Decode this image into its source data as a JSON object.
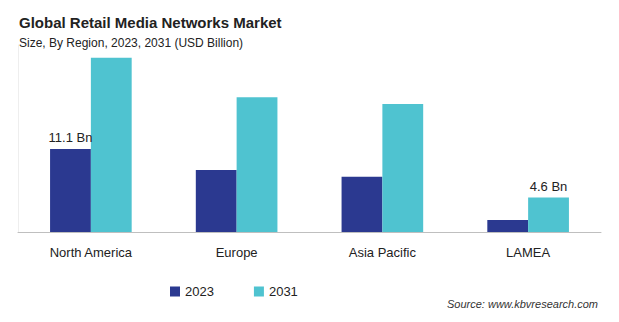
{
  "chart_data": {
    "type": "bar",
    "title": "Global Retail Media Networks Market",
    "subtitle": "Size, By Region, 2023, 2031 (USD Billion)",
    "source": "Source: www.kbvresearch.com",
    "categories": [
      "North America",
      "Europe",
      "Asia Pacific",
      "LAMEA"
    ],
    "series": [
      {
        "name": "2023",
        "color": "#2b3990",
        "values": [
          11.1,
          8.3,
          7.4,
          1.6
        ],
        "value_labels": [
          "11.1 Bn",
          null,
          null,
          null
        ]
      },
      {
        "name": "2031",
        "color": "#4fc3d0",
        "values": [
          23.3,
          18.0,
          17.1,
          4.6
        ],
        "value_labels": [
          null,
          null,
          null,
          "4.6 Bn"
        ]
      }
    ],
    "ylim": [
      0,
      25
    ],
    "grid": false,
    "legend": "bottom",
    "data_labels": true,
    "tick_labels": "x"
  }
}
